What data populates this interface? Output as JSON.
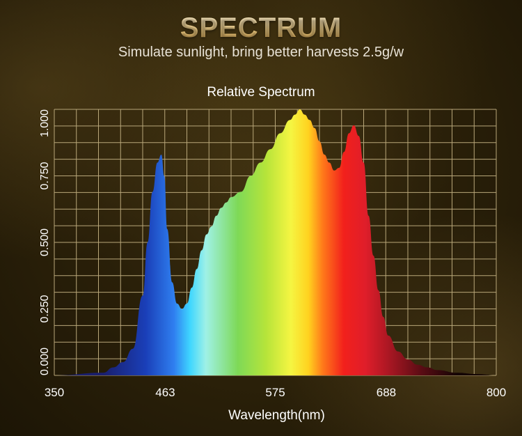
{
  "header": {
    "title": "SPECTRUM",
    "subtitle": "Simulate sunlight, bring better harvests 2.5g/w"
  },
  "chart_data": {
    "type": "area",
    "title": "Relative Spectrum",
    "xlabel": "Wavelength(nm)",
    "ylabel": "",
    "xlim": [
      350,
      800
    ],
    "ylim": [
      0,
      1
    ],
    "x_ticks": [
      350,
      463,
      575,
      688,
      800
    ],
    "x_tick_labels": [
      "350",
      "463",
      "575",
      "688",
      "800"
    ],
    "y_ticks": [
      0,
      0.25,
      0.5,
      0.75,
      1.0
    ],
    "y_tick_labels": [
      "0.000",
      "0.250",
      "0.500",
      "0.750",
      "1.000"
    ],
    "grid": true,
    "series": [
      {
        "x": [
          350,
          400,
          410,
          420,
          430,
          440,
          445,
          450,
          455,
          459,
          462,
          465,
          470,
          475,
          480,
          485,
          490,
          495,
          500,
          505,
          510,
          515,
          520,
          525,
          530,
          540,
          550,
          560,
          570,
          580,
          590,
          595,
          600,
          605,
          610,
          615,
          620,
          625,
          630,
          635,
          640,
          645,
          650,
          655,
          660,
          665,
          670,
          675,
          680,
          685,
          690,
          700,
          710,
          720,
          730,
          740,
          760,
          780,
          800
        ],
        "values": [
          0,
          0.01,
          0.03,
          0.05,
          0.1,
          0.3,
          0.5,
          0.69,
          0.8,
          0.83,
          0.75,
          0.55,
          0.35,
          0.27,
          0.25,
          0.27,
          0.33,
          0.4,
          0.47,
          0.53,
          0.56,
          0.6,
          0.63,
          0.65,
          0.67,
          0.69,
          0.75,
          0.8,
          0.85,
          0.91,
          0.96,
          0.98,
          1.0,
          0.98,
          0.96,
          0.93,
          0.88,
          0.83,
          0.8,
          0.77,
          0.78,
          0.84,
          0.91,
          0.94,
          0.9,
          0.8,
          0.6,
          0.45,
          0.32,
          0.22,
          0.15,
          0.09,
          0.06,
          0.04,
          0.03,
          0.02,
          0.01,
          0.005,
          0
        ]
      }
    ]
  },
  "colors": {
    "grid": "#b9a77a",
    "axis_text": "#ffffff",
    "spectrum_stops": [
      "#1a1f6e",
      "#1a3fb8",
      "#2f7ff0",
      "#3fd6ff",
      "#9ff1e6",
      "#7ed957",
      "#b6e43a",
      "#f5f542",
      "#ffd21f",
      "#ff7a1a",
      "#f2201c",
      "#e01e2a",
      "#b01824",
      "#5a0c14",
      "#140505"
    ]
  }
}
